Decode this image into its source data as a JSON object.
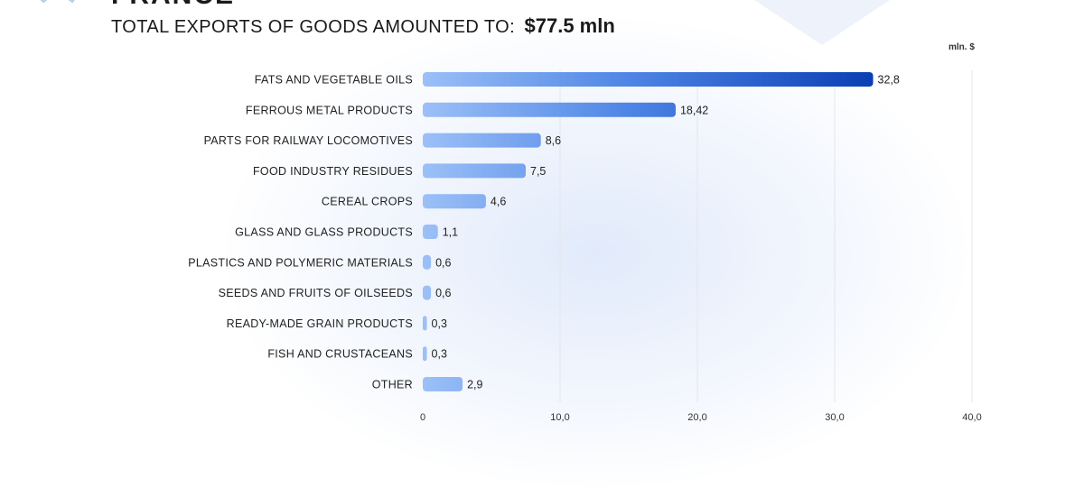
{
  "header": {
    "country": "FRANCE",
    "headline_prefix": "TOTAL EXPORTS OF GOODS AMOUNTED TO:",
    "headline_total": "$77.5 mln"
  },
  "chart_data": {
    "type": "bar",
    "orientation": "horizontal",
    "unit_label": "mln. $",
    "categories": [
      "FATS AND VEGETABLE OILS",
      "FERROUS METAL PRODUCTS",
      "PARTS FOR RAILWAY LOCOMOTIVES",
      "FOOD INDUSTRY RESIDUES",
      "CEREAL CROPS",
      "GLASS AND GLASS PRODUCTS",
      "PLASTICS AND POLYMERIC MATERIALS",
      "SEEDS AND FRUITS OF OILSEEDS",
      "READY-MADE GRAIN PRODUCTS",
      "FISH AND CRUSTACEANS",
      "OTHER"
    ],
    "values": [
      32.8,
      18.42,
      8.6,
      7.5,
      4.6,
      1.1,
      0.6,
      0.6,
      0.3,
      0.3,
      2.9
    ],
    "value_labels": [
      "32,8",
      "18,42",
      "8,6",
      "7,5",
      "4,6",
      "1,1",
      "0,6",
      "0,6",
      "0,3",
      "0,3",
      "2,9"
    ],
    "xlim": [
      0,
      40
    ],
    "x_ticks": [
      0,
      10,
      20,
      30,
      40
    ],
    "x_tick_labels": [
      "0",
      "10,0",
      "20,0",
      "30,0",
      "40,0"
    ],
    "grid": true,
    "colors": {
      "bar_light": "#9cc0f7",
      "bar_dark": "#0a3fb4",
      "grid": "#e3e6ec",
      "text": "#222222"
    }
  }
}
